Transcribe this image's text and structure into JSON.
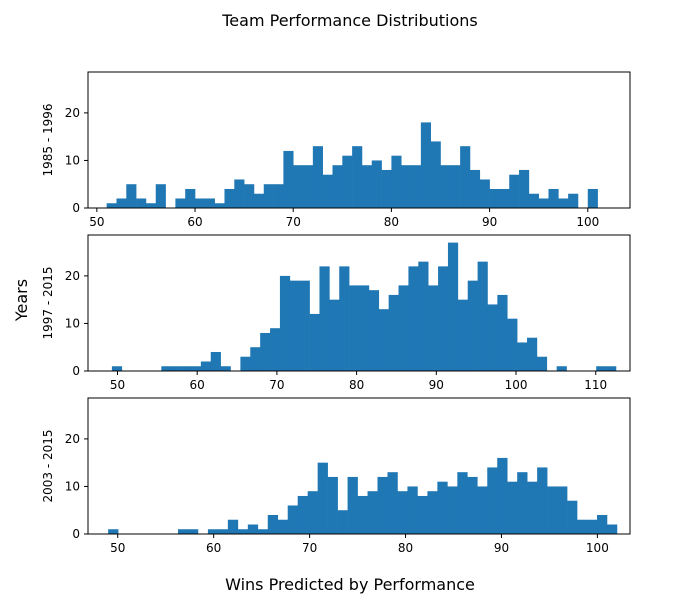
{
  "figure": {
    "title": "Team Performance Distributions",
    "xlabel": "Wins Predicted by Performance",
    "ylabel": "Years"
  },
  "chart_data": [
    {
      "type": "bar",
      "ylabel": "1985 - 1996",
      "color": "#1f77b4",
      "xlim": [
        49.1,
        104.3
      ],
      "ylim": [
        0,
        28.6
      ],
      "xticks": [
        50,
        60,
        70,
        80,
        90,
        100
      ],
      "yticks": [
        0,
        10,
        20
      ],
      "bin_start": 51.0,
      "bin_width": 1.0,
      "values": [
        1,
        2,
        5,
        2,
        1,
        5,
        0,
        2,
        4,
        2,
        2,
        1,
        4,
        6,
        5,
        3,
        5,
        5,
        12,
        9,
        9,
        13,
        7,
        9,
        11,
        13,
        9,
        10,
        8,
        11,
        9,
        9,
        18,
        14,
        9,
        9,
        13,
        8,
        6,
        4,
        4,
        7,
        8,
        3,
        2,
        4,
        2,
        3,
        0,
        4
      ]
    },
    {
      "type": "bar",
      "ylabel": "1997 - 2015",
      "color": "#1f77b4",
      "xlim": [
        46.3,
        114.3
      ],
      "ylim": [
        0,
        28.6
      ],
      "xticks": [
        50,
        60,
        70,
        80,
        90,
        100,
        110
      ],
      "yticks": [
        0,
        10,
        20
      ],
      "bin_start": 49.3,
      "bin_width": 1.24,
      "values": [
        1,
        0,
        0,
        0,
        0,
        1,
        1,
        1,
        1,
        2,
        4,
        1,
        0,
        3,
        5,
        8,
        9,
        20,
        19,
        19,
        12,
        22,
        15,
        22,
        18,
        18,
        17,
        13,
        16,
        18,
        22,
        23,
        18,
        22,
        27,
        15,
        19,
        23,
        14,
        16,
        11,
        6,
        7,
        3,
        0,
        1,
        0,
        0,
        0,
        1,
        1
      ]
    },
    {
      "type": "bar",
      "ylabel": "2003 - 2015",
      "color": "#1f77b4",
      "xlim": [
        46.9,
        103.4
      ],
      "ylim": [
        0,
        28.6
      ],
      "xticks": [
        50,
        60,
        70,
        80,
        90,
        100
      ],
      "yticks": [
        0,
        10,
        20
      ],
      "bin_start": 49.0,
      "bin_width": 1.04,
      "values": [
        1,
        0,
        0,
        0,
        0,
        0,
        0,
        1,
        1,
        0,
        1,
        1,
        3,
        1,
        2,
        1,
        4,
        3,
        6,
        8,
        9,
        15,
        12,
        5,
        12,
        8,
        9,
        12,
        13,
        9,
        10,
        8,
        9,
        11,
        10,
        13,
        12,
        10,
        14,
        16,
        11,
        13,
        11,
        14,
        10,
        10,
        7,
        3,
        3,
        4,
        2
      ]
    }
  ]
}
